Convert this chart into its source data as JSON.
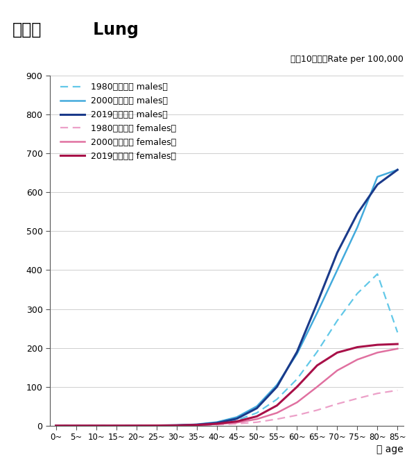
{
  "title_jp": "肺がん",
  "title_en": " Lung",
  "subtitle": "人口10万対　Rate per 100,000",
  "xlabel": "歳 age",
  "age_labels": [
    "0~",
    "5~",
    "10~",
    "15~",
    "20~",
    "25~",
    "30~",
    "35~",
    "40~",
    "45~",
    "50~",
    "55~",
    "60~",
    "65~",
    "70~",
    "75~",
    "80~",
    "85~"
  ],
  "ylim": [
    0,
    900
  ],
  "yticks": [
    0,
    100,
    200,
    300,
    400,
    500,
    600,
    700,
    800,
    900
  ],
  "male_1980": [
    0.2,
    0.1,
    0.1,
    0.1,
    0.2,
    0.3,
    0.8,
    2.0,
    5.5,
    14,
    33,
    68,
    120,
    190,
    270,
    340,
    390,
    240
  ],
  "male_2000": [
    0.2,
    0.1,
    0.1,
    0.1,
    0.3,
    0.5,
    1.2,
    3.5,
    9,
    22,
    50,
    105,
    185,
    290,
    400,
    510,
    640,
    658
  ],
  "male_2019": [
    0.1,
    0.1,
    0.1,
    0.1,
    0.2,
    0.4,
    1.0,
    2.5,
    7,
    18,
    45,
    100,
    190,
    315,
    445,
    545,
    620,
    658
  ],
  "female_1980": [
    0.1,
    0.1,
    0.1,
    0.1,
    0.2,
    0.3,
    0.5,
    1.0,
    2.5,
    5,
    9,
    17,
    27,
    40,
    56,
    70,
    83,
    91
  ],
  "female_2000": [
    0.1,
    0.1,
    0.1,
    0.1,
    0.2,
    0.3,
    0.7,
    1.5,
    4,
    8,
    17,
    33,
    60,
    100,
    142,
    170,
    188,
    198
  ],
  "female_2019": [
    0.1,
    0.1,
    0.1,
    0.1,
    0.2,
    0.4,
    0.8,
    2.0,
    5,
    11,
    24,
    52,
    100,
    155,
    188,
    202,
    208,
    210
  ],
  "color_male_1980": "#62C8E8",
  "color_male_2000": "#42AADC",
  "color_male_2019": "#1A3A8A",
  "color_female_1980": "#ECA0C8",
  "color_female_2000": "#E070A0",
  "color_female_2019": "#A81048",
  "lw_male_1980": 1.6,
  "lw_male_2000": 1.8,
  "lw_male_2019": 2.2,
  "lw_female_1980": 1.6,
  "lw_female_2000": 1.8,
  "lw_female_2019": 2.2,
  "legend_labels": [
    "1980　（男性 males）",
    "2000　（男性 males）",
    "2019　（男性 males）",
    "1980　（女性 females）",
    "2000　（女性 females）",
    "2019　（女性 females）"
  ]
}
